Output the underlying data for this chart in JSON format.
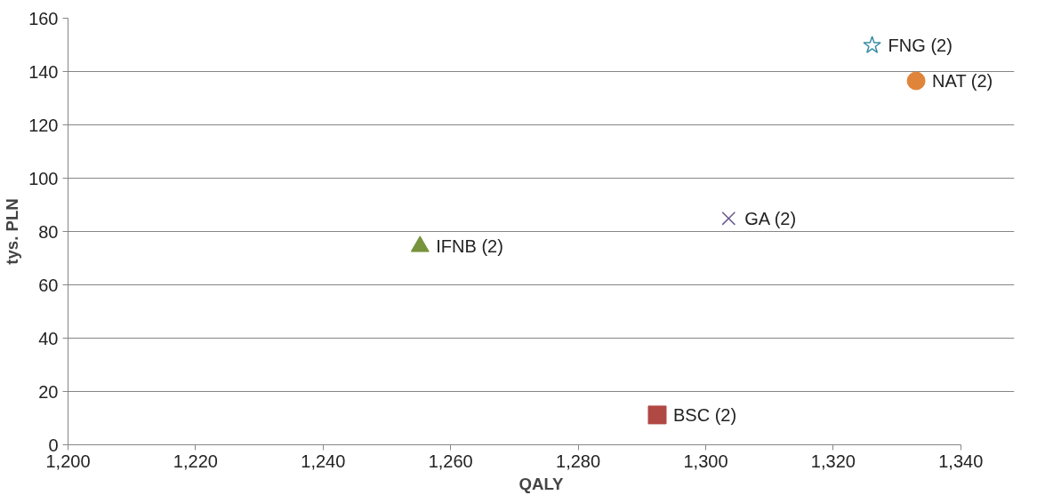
{
  "chart_data": {
    "type": "scatter",
    "xlabel": "QALY",
    "ylabel": "tys. PLN",
    "xlim": [
      1200,
      1340
    ],
    "ylim": [
      0,
      160
    ],
    "xticks": [
      {
        "value": 1200,
        "label": "1,200"
      },
      {
        "value": 1220,
        "label": "1,220"
      },
      {
        "value": 1240,
        "label": "1,240"
      },
      {
        "value": 1260,
        "label": "1,260"
      },
      {
        "value": 1280,
        "label": "1,280"
      },
      {
        "value": 1300,
        "label": "1,300"
      },
      {
        "value": 1320,
        "label": "1,320"
      },
      {
        "value": 1340,
        "label": "1,340"
      }
    ],
    "yticks": [
      0,
      20,
      40,
      60,
      80,
      100,
      120,
      140,
      160
    ],
    "grid": "y",
    "legend": false,
    "series": [
      {
        "name": "IFNB (2)",
        "color": "#77933c",
        "marker": "triangle",
        "x": [
          1255.2
        ],
        "values": [
          74.4
        ]
      },
      {
        "name": "BSC (2)",
        "color": "#b04844",
        "marker": "square",
        "x": [
          1292.4
        ],
        "values": [
          11.2
        ]
      },
      {
        "name": "GA (2)",
        "color": "#6a5a8e",
        "marker": "cross",
        "x": [
          1303.6
        ],
        "values": [
          84.9
        ]
      },
      {
        "name": "FNG (2)",
        "color": "#3a8fa6",
        "marker": "star",
        "x": [
          1326.1
        ],
        "values": [
          149.8
        ]
      },
      {
        "name": "NAT (2)",
        "color": "#e0843a",
        "marker": "circle",
        "x": [
          1333.0
        ],
        "values": [
          136.5
        ]
      }
    ]
  }
}
